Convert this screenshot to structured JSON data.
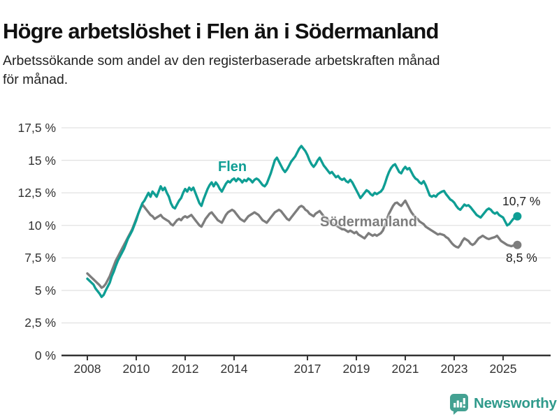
{
  "header": {
    "title": "Högre arbetslöshet i Flen än i Södermanland",
    "subtitle_lines": [
      "Arbetssökande som andel av den registerbaserade arbetskraften månad",
      "för månad."
    ]
  },
  "colors": {
    "flen": "#0f9e94",
    "sodermanland": "#7d7d7d",
    "grid": "#e2e2e2",
    "axis": "#333333",
    "text": "#1a1a1a",
    "end_label": "#222222",
    "logo_icon": "#44a192",
    "logo_text": "#2f9a8b"
  },
  "chart_data": {
    "type": "line",
    "title": "Högre arbetslöshet i Flen än i Södermanland",
    "subtitle": "Arbetssökande som andel av den registerbaserade arbetskraften månad för månad.",
    "x_start": {
      "year": 2008,
      "month": 1
    },
    "x_step_months": 1,
    "ylim": [
      0,
      17.5
    ],
    "grid": true,
    "legend": "inline-labels",
    "yticks": [
      {
        "value": 17.5,
        "label": "17,5 %"
      },
      {
        "value": 15,
        "label": "15 %"
      },
      {
        "value": 12.5,
        "label": "12,5 %"
      },
      {
        "value": 10,
        "label": "10 %"
      },
      {
        "value": 7.5,
        "label": "7,5 %"
      },
      {
        "value": 5,
        "label": "5 %"
      },
      {
        "value": 2.5,
        "label": "2,5 %"
      },
      {
        "value": 0,
        "label": "0 %"
      }
    ],
    "xticks": [
      {
        "year": 2008,
        "label": "2008"
      },
      {
        "year": 2010,
        "label": "2010"
      },
      {
        "year": 2012,
        "label": "2012"
      },
      {
        "year": 2014,
        "label": "2014"
      },
      {
        "year": 2017,
        "label": "2017"
      },
      {
        "year": 2019,
        "label": "2019"
      },
      {
        "year": 2021,
        "label": "2021"
      },
      {
        "year": 2023,
        "label": "2023"
      },
      {
        "year": 2025,
        "label": "2025"
      }
    ],
    "series": [
      {
        "name": "Flen",
        "color": "#0f9e94",
        "end_label": "10,7 %",
        "end_value": 10.7,
        "values": [
          5.9,
          5.75,
          5.6,
          5.45,
          5.15,
          4.95,
          4.75,
          4.5,
          4.65,
          5.0,
          5.3,
          5.6,
          6.1,
          6.45,
          6.9,
          7.3,
          7.6,
          7.9,
          8.2,
          8.6,
          9.0,
          9.3,
          9.6,
          10.0,
          10.4,
          10.9,
          11.3,
          11.7,
          11.9,
          12.2,
          12.5,
          12.2,
          12.6,
          12.4,
          12.2,
          12.6,
          13.0,
          12.7,
          12.9,
          12.5,
          12.2,
          11.7,
          11.4,
          11.3,
          11.6,
          11.9,
          12.1,
          12.5,
          12.8,
          12.6,
          12.9,
          12.7,
          12.9,
          12.5,
          12.1,
          11.7,
          11.5,
          12.0,
          12.4,
          12.8,
          13.1,
          13.3,
          13.0,
          13.3,
          13.1,
          12.8,
          12.6,
          12.9,
          13.2,
          13.4,
          13.3,
          13.5,
          13.6,
          13.4,
          13.6,
          13.5,
          13.3,
          13.5,
          13.4,
          13.6,
          13.5,
          13.3,
          13.5,
          13.6,
          13.5,
          13.3,
          13.1,
          13.0,
          13.2,
          13.6,
          14.0,
          14.5,
          15.0,
          15.2,
          14.9,
          14.6,
          14.3,
          14.1,
          14.3,
          14.6,
          14.9,
          15.1,
          15.3,
          15.6,
          15.9,
          16.1,
          15.9,
          15.7,
          15.4,
          15.0,
          14.7,
          14.5,
          14.7,
          15.0,
          15.2,
          14.9,
          14.6,
          14.4,
          14.2,
          14.0,
          14.1,
          13.9,
          13.7,
          13.8,
          13.6,
          13.5,
          13.6,
          13.4,
          13.3,
          13.5,
          13.3,
          13.0,
          12.7,
          12.4,
          12.1,
          12.3,
          12.5,
          12.7,
          12.6,
          12.4,
          12.3,
          12.5,
          12.4,
          12.5,
          12.6,
          12.8,
          13.2,
          13.7,
          14.1,
          14.4,
          14.6,
          14.7,
          14.4,
          14.1,
          14.0,
          14.3,
          14.5,
          14.3,
          14.4,
          14.1,
          13.8,
          13.6,
          13.5,
          13.3,
          13.2,
          13.4,
          13.1,
          12.7,
          12.3,
          12.2,
          12.3,
          12.2,
          12.4,
          12.5,
          12.6,
          12.65,
          12.4,
          12.2,
          12.0,
          11.9,
          11.75,
          11.5,
          11.3,
          11.2,
          11.4,
          11.6,
          11.5,
          11.55,
          11.4,
          11.2,
          11.0,
          10.8,
          10.7,
          10.6,
          10.8,
          11.0,
          11.2,
          11.3,
          11.2,
          11.0,
          10.9,
          11.0,
          10.8,
          10.7,
          10.6,
          10.3,
          10.0,
          10.1,
          10.3,
          10.5,
          10.6,
          10.7
        ]
      },
      {
        "name": "Södermanland",
        "color": "#7d7d7d",
        "end_label": "8,5 %",
        "end_value": 8.5,
        "values": [
          6.3,
          6.15,
          6.0,
          5.85,
          5.7,
          5.55,
          5.4,
          5.2,
          5.3,
          5.5,
          5.8,
          6.1,
          6.5,
          6.9,
          7.3,
          7.6,
          7.9,
          8.2,
          8.5,
          8.8,
          9.1,
          9.4,
          9.7,
          10.1,
          10.5,
          10.9,
          11.3,
          11.6,
          11.4,
          11.2,
          11.0,
          10.8,
          10.7,
          10.5,
          10.6,
          10.7,
          10.8,
          10.6,
          10.5,
          10.4,
          10.3,
          10.1,
          10.0,
          10.2,
          10.4,
          10.5,
          10.4,
          10.6,
          10.7,
          10.6,
          10.7,
          10.8,
          10.6,
          10.4,
          10.2,
          10.0,
          9.9,
          10.2,
          10.5,
          10.7,
          10.9,
          11.0,
          10.8,
          10.6,
          10.4,
          10.3,
          10.2,
          10.5,
          10.8,
          11.0,
          11.1,
          11.2,
          11.1,
          10.9,
          10.7,
          10.5,
          10.4,
          10.3,
          10.5,
          10.7,
          10.8,
          10.9,
          11.0,
          10.9,
          10.8,
          10.6,
          10.4,
          10.3,
          10.2,
          10.4,
          10.6,
          10.8,
          11.0,
          11.1,
          11.2,
          11.1,
          10.9,
          10.7,
          10.5,
          10.4,
          10.6,
          10.8,
          11.0,
          11.2,
          11.4,
          11.5,
          11.4,
          11.2,
          11.1,
          10.9,
          10.8,
          10.7,
          10.9,
          11.0,
          11.1,
          10.9,
          10.7,
          10.5,
          10.4,
          10.3,
          10.2,
          10.1,
          10.0,
          9.9,
          9.8,
          9.7,
          9.7,
          9.6,
          9.5,
          9.6,
          9.5,
          9.4,
          9.5,
          9.3,
          9.2,
          9.1,
          9.0,
          9.2,
          9.4,
          9.3,
          9.2,
          9.3,
          9.2,
          9.3,
          9.4,
          9.6,
          10.0,
          10.5,
          10.9,
          11.2,
          11.5,
          11.7,
          11.75,
          11.6,
          11.5,
          11.7,
          11.9,
          11.6,
          11.3,
          11.0,
          10.8,
          10.6,
          10.5,
          10.3,
          10.2,
          10.1,
          9.9,
          9.8,
          9.7,
          9.6,
          9.5,
          9.4,
          9.3,
          9.35,
          9.3,
          9.25,
          9.1,
          9.0,
          8.8,
          8.6,
          8.45,
          8.35,
          8.3,
          8.5,
          8.8,
          9.0,
          8.9,
          8.8,
          8.6,
          8.5,
          8.6,
          8.8,
          9.0,
          9.1,
          9.2,
          9.1,
          9.0,
          8.95,
          9.0,
          9.05,
          9.1,
          9.2,
          9.0,
          8.8,
          8.7,
          8.6,
          8.5,
          8.45,
          8.4,
          8.45,
          8.5,
          8.5
        ]
      }
    ]
  },
  "footer": {
    "logo_text": "Newsworthy"
  }
}
